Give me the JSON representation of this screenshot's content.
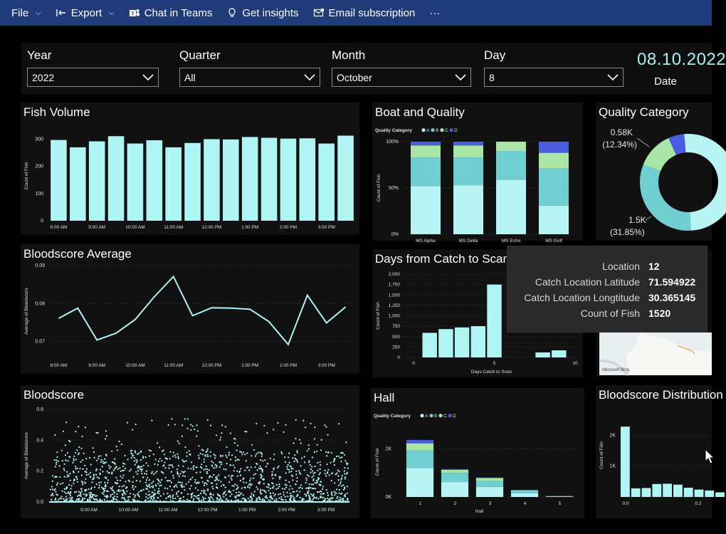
{
  "toolbar": {
    "file": "File",
    "export": "Export",
    "chat_in_teams": "Chat in Teams",
    "get_insights": "Get insights",
    "email_subscription": "Email subscription",
    "more": "···"
  },
  "slicers": {
    "year": {
      "label": "Year",
      "value": "2022"
    },
    "quarter": {
      "label": "Quarter",
      "value": "All"
    },
    "month": {
      "label": "Month",
      "value": "October"
    },
    "day": {
      "label": "Day",
      "value": "8"
    }
  },
  "date_card": {
    "value": "08.10.2022",
    "label": "Date"
  },
  "panels": {
    "fish_volume": "Fish Volume",
    "boat_quality": "Boat and Quality",
    "quality_category": "Quality Category",
    "bloodscore_average": "Bloodscore Average",
    "days_catch_scan": "Days from Catch to Scan",
    "bloodscore": "Bloodscore",
    "hall": "Hall",
    "bloodscore_distribution": "Bloodscore Distribution"
  },
  "tooltip": {
    "rows": [
      {
        "key": "Location",
        "value": "12"
      },
      {
        "key": "Catch Location Latitude",
        "value": "71.594922"
      },
      {
        "key": "Catch Location Longtitude",
        "value": "30.365145"
      },
      {
        "key": "Count of Fish",
        "value": "1520"
      }
    ]
  },
  "map_attribution": "Microsoft Bing",
  "colors": {
    "topbar": "#1f3b7a",
    "cat_A": "#b8f4f4",
    "cat_B": "#6fcfd0",
    "cat_C": "#a9e6a5",
    "cat_D": "#4a5de0"
  },
  "chart_data": [
    {
      "id": "fish_volume",
      "type": "bar",
      "title": "Fish Volume",
      "ylabel": "Count of Fish",
      "ylim": [
        0,
        330
      ],
      "yticks": [
        0,
        100,
        200,
        300
      ],
      "x_tick_labels": [
        "8:00 AM",
        "9:00 AM",
        "10:00 AM",
        "11:00 AM",
        "12:00 PM",
        "1:00 PM",
        "2:00 PM",
        "3:00 PM"
      ],
      "values": [
        297,
        270,
        292,
        311,
        284,
        296,
        270,
        286,
        300,
        299,
        308,
        305,
        302,
        303,
        284,
        313
      ]
    },
    {
      "id": "boat_quality",
      "type": "bar",
      "stacked": "percent",
      "title": "Boat and Quality",
      "legend_title": "Quality Category",
      "ylabel": "Count of Fish",
      "yticks": [
        "0%",
        "50%",
        "100%"
      ],
      "categories": [
        "MS Alpha",
        "MS Delta",
        "MS Echo",
        "MS Golf"
      ],
      "series": [
        {
          "name": "A",
          "values": [
            52,
            53,
            59,
            31
          ]
        },
        {
          "name": "B",
          "values": [
            31,
            30,
            31,
            40
          ]
        },
        {
          "name": "C",
          "values": [
            13,
            13,
            10,
            17
          ]
        },
        {
          "name": "D",
          "values": [
            4,
            4,
            0,
            12
          ]
        }
      ]
    },
    {
      "id": "quality_category",
      "type": "pie",
      "title": "Quality Category",
      "slices": [
        {
          "name": "A",
          "value": 50.48
        },
        {
          "name": "B",
          "value": 31.85
        },
        {
          "name": "C",
          "value": 12.34
        },
        {
          "name": "D",
          "value": 5.33
        }
      ],
      "labels": [
        {
          "value": "0.58K",
          "pct": "(12.34%)"
        },
        {
          "value": "1.5K",
          "pct": "(31.85%)"
        }
      ]
    },
    {
      "id": "bloodscore_average",
      "type": "line",
      "title": "Bloodscore Average",
      "ylabel": "Average of Bloodscore",
      "ylim": [
        0.066,
        0.09
      ],
      "yticks": [
        0.07,
        0.08,
        0.09
      ],
      "x_tick_labels": [
        "8:00 AM",
        "9:00 AM",
        "10:00 AM",
        "11:00 AM",
        "12:00 PM",
        "1:00 PM",
        "2:00 PM",
        "3:00 PM"
      ],
      "values": [
        0.0761,
        0.0788,
        0.0704,
        0.0722,
        0.0758,
        0.0818,
        0.0871,
        0.0768,
        0.0789,
        0.0788,
        0.0785,
        0.0752,
        0.0692,
        0.0822,
        0.0749,
        0.0791
      ]
    },
    {
      "id": "days_catch_scan",
      "type": "bar",
      "title": "Days from Catch to Scan",
      "xlabel": "Days Catch to Scan",
      "ylabel": "Count of Fish",
      "ylim": [
        0,
        2000
      ],
      "yticks": [
        "0",
        "250",
        "500",
        "750",
        "1,000",
        "1,250",
        "1,500",
        "1,750",
        "2,000"
      ],
      "xticks": [
        0,
        5,
        10
      ],
      "x": [
        1,
        2,
        3,
        4,
        5,
        8,
        9
      ],
      "values": [
        590,
        680,
        720,
        750,
        1750,
        120,
        170
      ]
    },
    {
      "id": "bloodscore",
      "type": "scatter",
      "title": "Bloodscore",
      "ylabel": "Average of Bloodscore",
      "ylim": [
        0,
        0.6
      ],
      "yticks": [
        0.0,
        0.2,
        0.4,
        0.6
      ],
      "x_tick_labels": [
        "9:00 AM",
        "10:00 AM",
        "11:00 AM",
        "12:00 PM",
        "1:00 PM",
        "2:00 PM",
        "3:00 PM"
      ]
    },
    {
      "id": "hall",
      "type": "bar",
      "stacked": true,
      "title": "Hall",
      "legend_title": "Quality Category",
      "xlabel": "Hall",
      "ylabel": "Count of Fish",
      "yticks": [
        "0K",
        "2K"
      ],
      "ylim": [
        0,
        2900
      ],
      "categories": [
        "1",
        "2",
        "3",
        "4",
        "5"
      ],
      "series": [
        {
          "name": "A",
          "values": [
            1200,
            620,
            420,
            150,
            20
          ]
        },
        {
          "name": "B",
          "values": [
            730,
            380,
            260,
            90,
            15
          ]
        },
        {
          "name": "C",
          "values": [
            300,
            130,
            110,
            40,
            5
          ]
        },
        {
          "name": "D",
          "values": [
            140,
            30,
            20,
            10,
            0
          ]
        }
      ]
    },
    {
      "id": "bloodscore_distribution",
      "type": "bar",
      "title": "Bloodscore Distribution",
      "ylabel": "Count of Fish",
      "yticks": [
        "1K",
        "2K"
      ],
      "ylim": [
        0,
        2700
      ],
      "xticks": [
        "0.0",
        "0.2"
      ],
      "values": [
        2280,
        280,
        290,
        420,
        430,
        400,
        300,
        240,
        210,
        150
      ]
    }
  ]
}
